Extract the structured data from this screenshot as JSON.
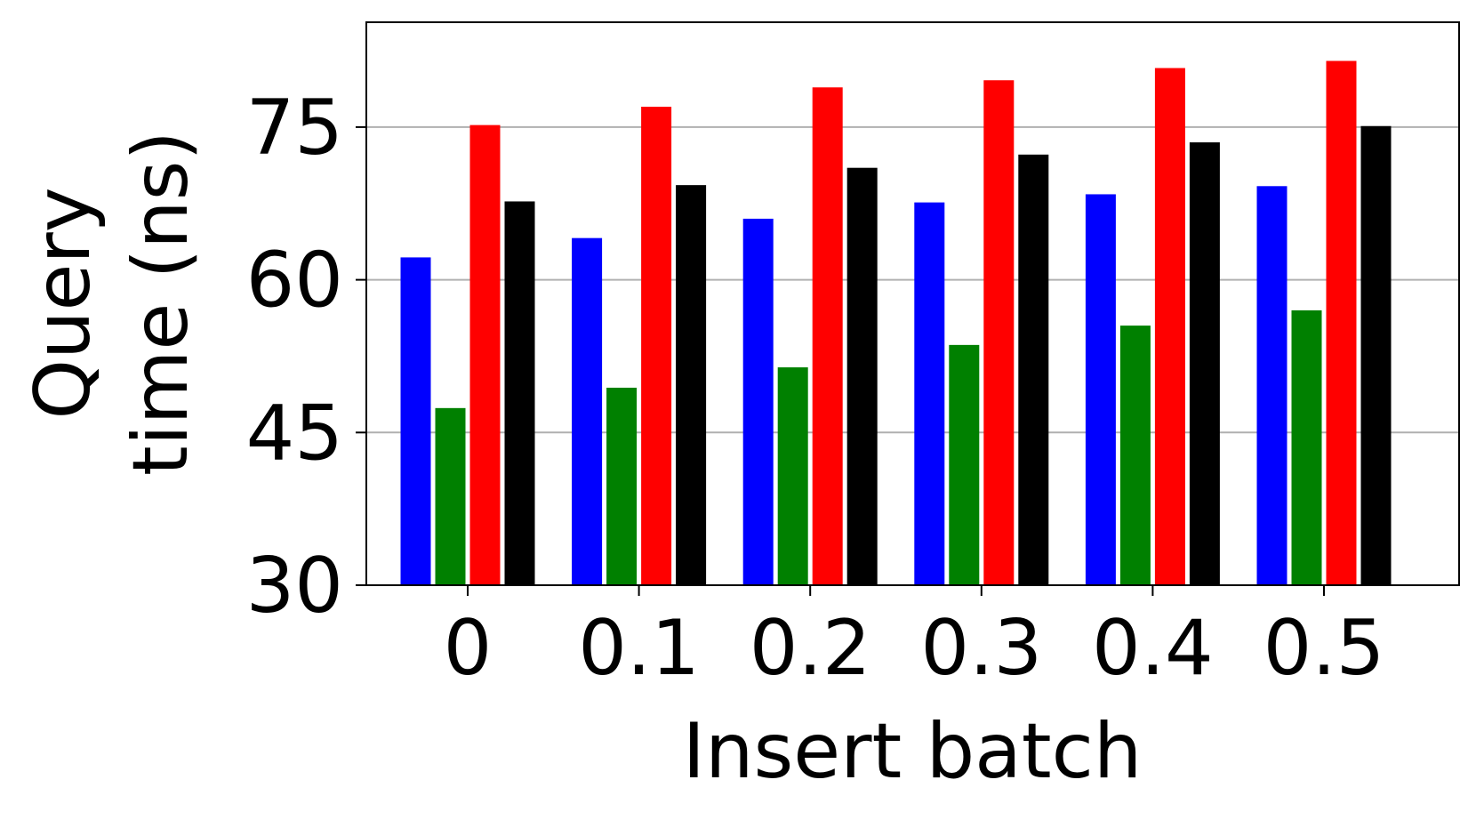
{
  "chart_data": {
    "type": "bar",
    "xlabel": "Insert batch",
    "ylabel_lines": [
      "Query",
      "time (ns)"
    ],
    "categories": [
      "0",
      "0.1",
      "0.2",
      "0.3",
      "0.4",
      "0.5"
    ],
    "ylim": [
      30,
      85.3
    ],
    "yticks": [
      30,
      45,
      60,
      75
    ],
    "ytick_labels": [
      "30",
      "45",
      "60",
      "75"
    ],
    "grid": "y",
    "series": [
      {
        "color": "#0000ff",
        "values": [
          62.2,
          64.1,
          66.0,
          67.6,
          68.4,
          69.2
        ]
      },
      {
        "color": "#008000",
        "values": [
          47.4,
          49.4,
          51.4,
          53.6,
          55.5,
          57.0
        ]
      },
      {
        "color": "#ff0000",
        "values": [
          75.2,
          77.0,
          78.9,
          79.6,
          80.8,
          81.5
        ]
      },
      {
        "color": "#000000",
        "values": [
          67.7,
          69.3,
          71.0,
          72.3,
          73.5,
          75.1
        ]
      }
    ]
  }
}
